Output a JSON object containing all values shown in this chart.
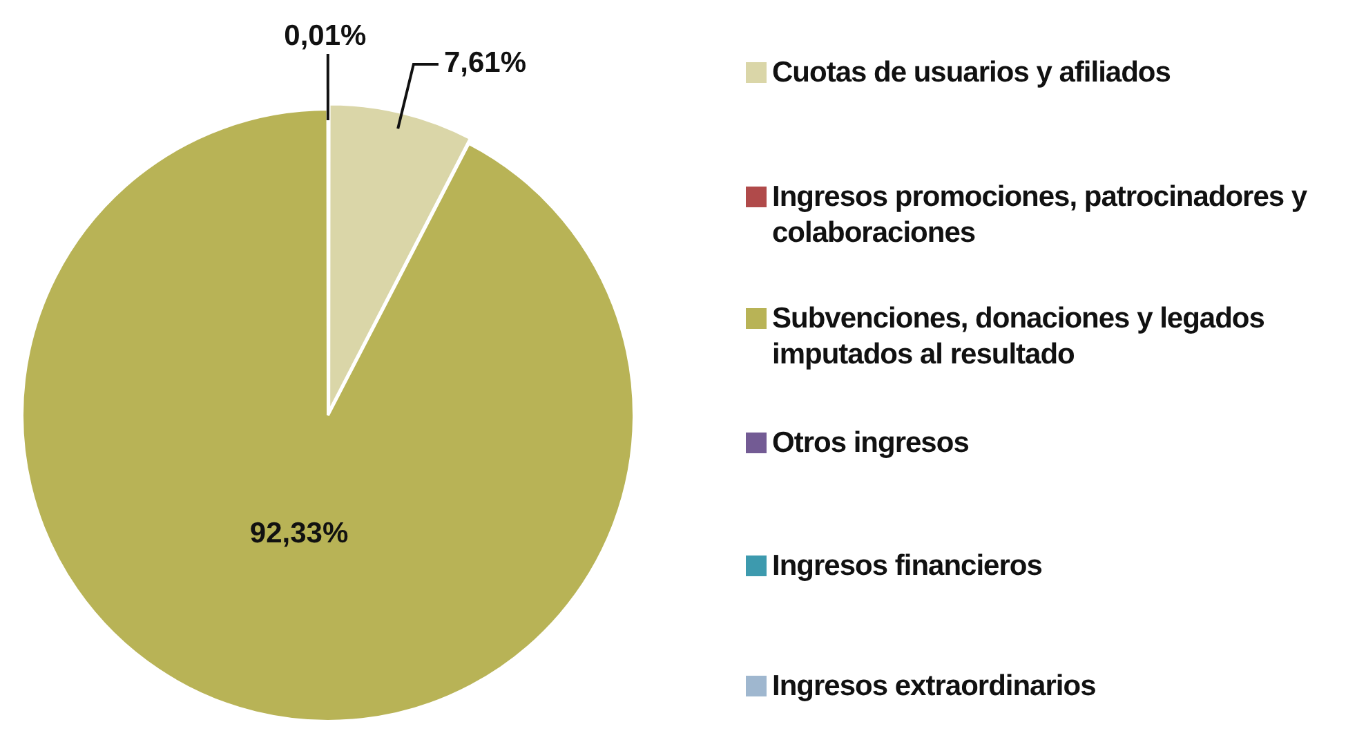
{
  "chart_data": {
    "type": "pie",
    "categories": [
      "Cuotas de usuarios y afiliados",
      "Ingresos promociones, patrocinadores y colaboraciones",
      "Subvenciones, donaciones y legados imputados al resultado",
      "Otros ingresos",
      "Ingresos financieros",
      "Ingresos extraordinarios"
    ],
    "values": [
      7.61,
      0,
      92.33,
      0,
      0,
      0.01
    ],
    "colors": [
      "#dad6a8",
      "#b04a4a",
      "#b8b356",
      "#735b94",
      "#3d9aae",
      "#9fb7cf"
    ],
    "value_labels": [
      "7,61%",
      null,
      "92,33%",
      null,
      null,
      "0,01%"
    ],
    "legend": "right"
  }
}
